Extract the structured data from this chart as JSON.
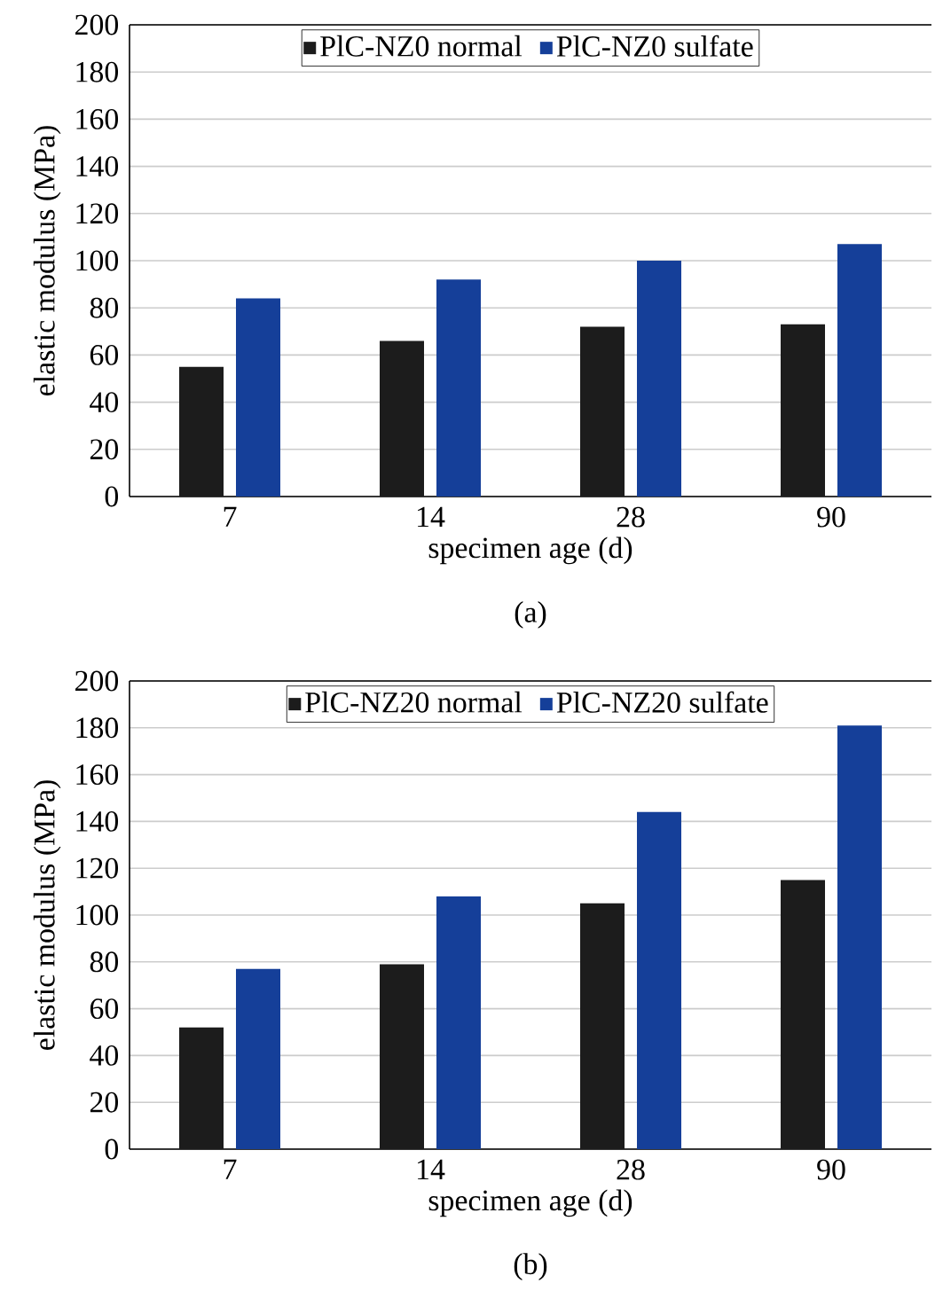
{
  "chart_data": [
    {
      "type": "bar",
      "categories": [
        "7",
        "14",
        "28",
        "90"
      ],
      "xlabel": "specimen age (d)",
      "ylabel": "elastic modulus (MPa)",
      "annotations": [
        "(a)"
      ],
      "series": [
        {
          "name": "PlC-NZ0 normal",
          "color": "#1c1c1c",
          "values": [
            55,
            66,
            72,
            73
          ]
        },
        {
          "name": "PlC-NZ0 sulfate",
          "color": "#153f99",
          "values": [
            84,
            92,
            100,
            107
          ]
        }
      ],
      "ylim": [
        0,
        200
      ],
      "yticks": [
        0,
        20,
        40,
        60,
        80,
        100,
        120,
        140,
        160,
        180,
        200
      ],
      "grid": "y",
      "legend": "top"
    },
    {
      "type": "bar",
      "categories": [
        "7",
        "14",
        "28",
        "90"
      ],
      "xlabel": "specimen age (d)",
      "ylabel": "elastic modulus (MPa)",
      "annotations": [
        "(b)"
      ],
      "series": [
        {
          "name": "PlC-NZ20 normal",
          "color": "#1c1c1c",
          "values": [
            52,
            79,
            105,
            115
          ]
        },
        {
          "name": "PlC-NZ20 sulfate",
          "color": "#153f99",
          "values": [
            77,
            108,
            144,
            181
          ]
        }
      ],
      "ylim": [
        0,
        200
      ],
      "yticks": [
        0,
        20,
        40,
        60,
        80,
        100,
        120,
        140,
        160,
        180,
        200
      ],
      "grid": "y",
      "legend": "top"
    }
  ]
}
